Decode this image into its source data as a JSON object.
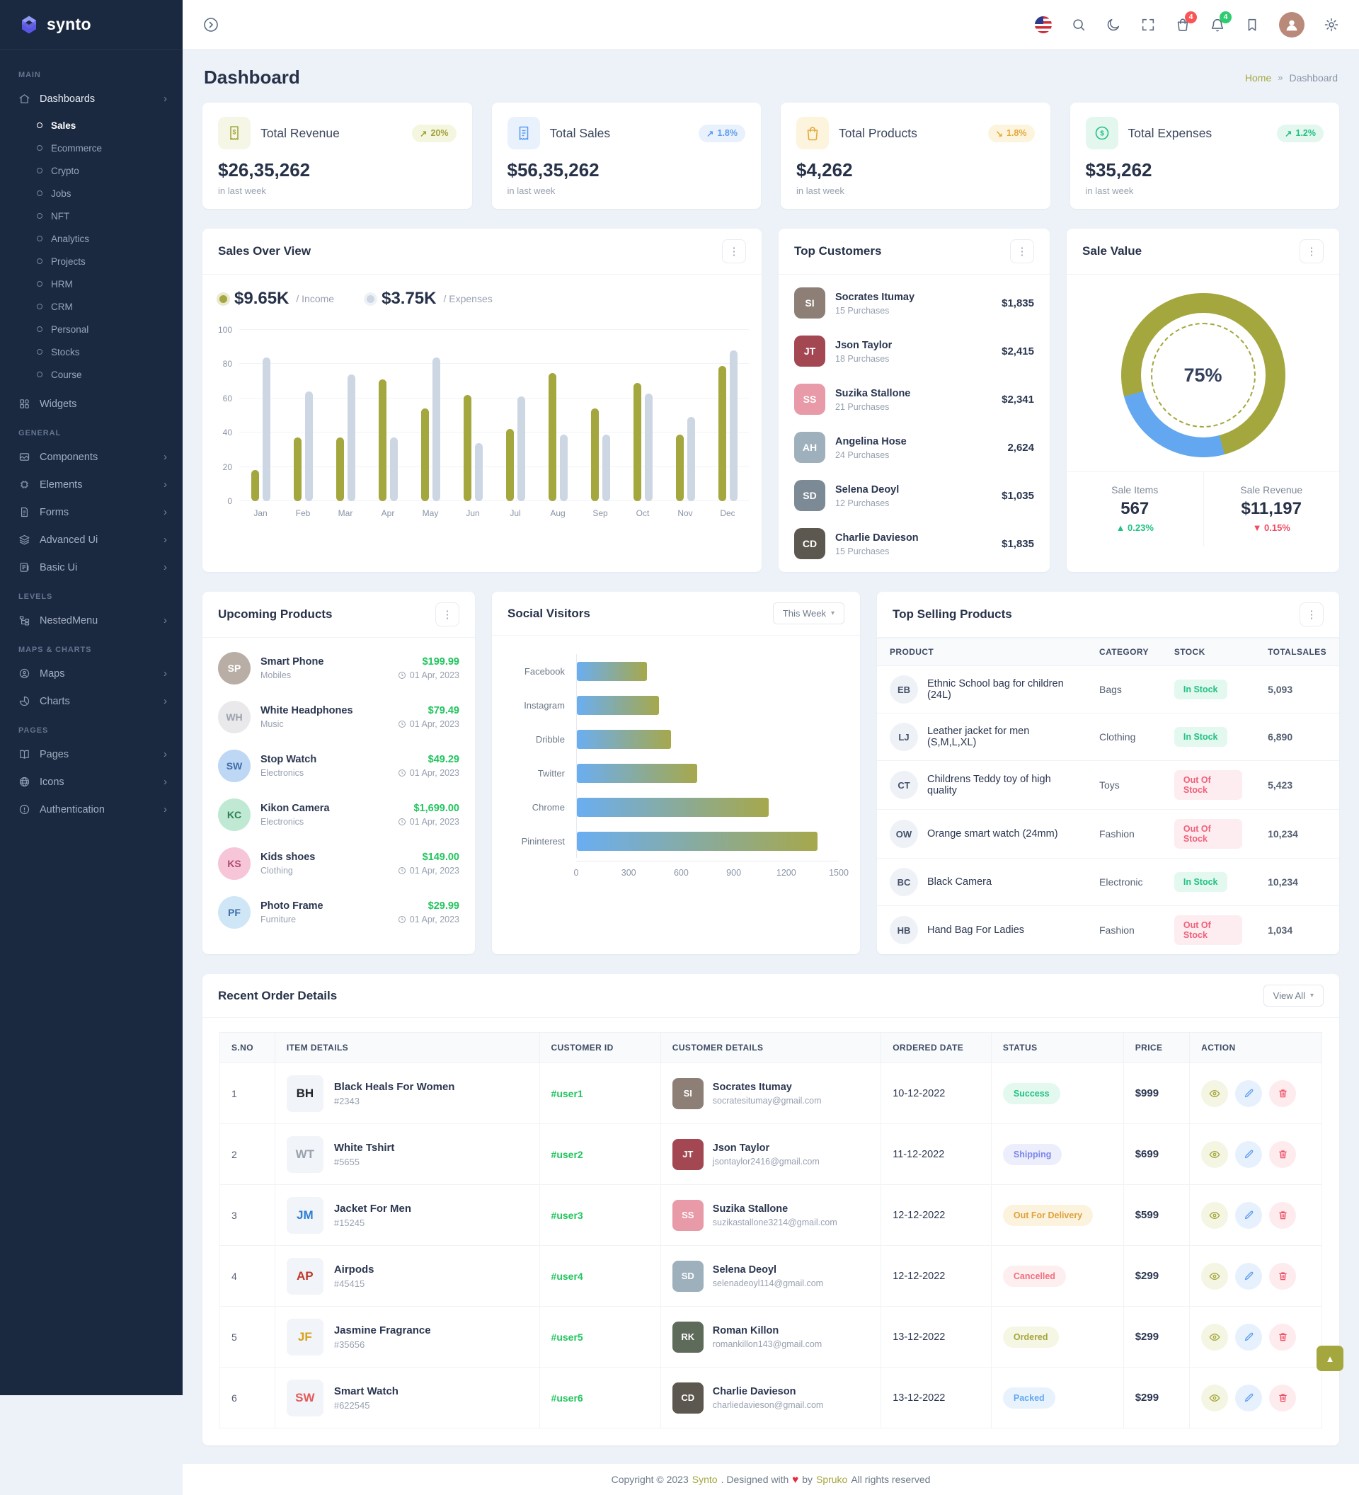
{
  "brand": {
    "name": "synto"
  },
  "page": {
    "title": "Dashboard"
  },
  "breadcrumb": {
    "home": "Home",
    "sep": "»",
    "current": "Dashboard"
  },
  "header": {
    "cart_badge": "4",
    "bell_badge": "4",
    "icons": [
      "sidebar-toggle",
      "us-flag",
      "search",
      "moon",
      "fullscreen",
      "cart",
      "bell",
      "bookmark",
      "avatar",
      "gear"
    ]
  },
  "sidebar": {
    "label_main": "MAIN",
    "label_general": "GENERAL",
    "label_levels": "LEVELS",
    "label_maps": "MAPS & CHARTS",
    "label_pages": "PAGES",
    "dashboards": "Dashboards",
    "children": [
      "Sales",
      "Ecommerce",
      "Crypto",
      "Jobs",
      "NFT",
      "Analytics",
      "Projects",
      "HRM",
      "CRM",
      "Personal",
      "Stocks",
      "Course"
    ],
    "active_child": "Sales",
    "widgets": "Widgets",
    "general_items": [
      "Components",
      "Elements",
      "Forms",
      "Advanced Ui",
      "Basic Ui"
    ],
    "levels_items": [
      "NestedMenu"
    ],
    "maps_items": [
      "Maps",
      "Charts"
    ],
    "pages_items": [
      "Pages",
      "Icons",
      "Authentication"
    ]
  },
  "colors": {
    "olive": "#a4a73e",
    "blue": "#63a7f0",
    "expenses_gray": "#cdd7e4",
    "success": "#23c184",
    "danger": "#ef4b62",
    "warning": "#e3a93c",
    "sidebar_bg": "#1b2940"
  },
  "stats": {
    "cards": [
      {
        "title": "Total Revenue",
        "value": "$26,35,262",
        "sub": "in last week",
        "delta": "20%",
        "arrow": "↗"
      },
      {
        "title": "Total Sales",
        "value": "$56,35,262",
        "sub": "in last week",
        "delta": "1.8%",
        "arrow": "↗"
      },
      {
        "title": "Total Products",
        "value": "$4,262",
        "sub": "in last week",
        "delta": "1.8%",
        "arrow": "↘"
      },
      {
        "title": "Total Expenses",
        "value": "$35,262",
        "sub": "in last week",
        "delta": "1.2%",
        "arrow": "↗"
      }
    ]
  },
  "chart_data": [
    {
      "id": "sales_over_view",
      "type": "bar",
      "title": "Sales Over View",
      "legend_position": "top",
      "grid": true,
      "legend": [
        {
          "label": "/ Income",
          "value_text": "$9.65K",
          "color": "#a4a73e"
        },
        {
          "label": "/ Expenses",
          "value_text": "$3.75K",
          "color": "#cdd7e4"
        }
      ],
      "categories": [
        "Jan",
        "Feb",
        "Mar",
        "Apr",
        "May",
        "Jun",
        "Jul",
        "Aug",
        "Sep",
        "Oct",
        "Nov",
        "Dec"
      ],
      "series": [
        {
          "name": "Income",
          "color": "#a4a73e",
          "values": [
            18,
            37,
            37,
            71,
            54,
            62,
            42,
            75,
            54,
            69,
            39,
            79
          ]
        },
        {
          "name": "Expenses",
          "color": "#cdd7e4",
          "values": [
            84,
            64,
            74,
            37,
            84,
            34,
            61,
            39,
            39,
            63,
            49,
            88
          ]
        }
      ],
      "ylim": [
        0,
        100
      ],
      "yticks": [
        0,
        20,
        40,
        60,
        80,
        100
      ]
    },
    {
      "id": "sale_value",
      "type": "pie",
      "title": "Sale Value",
      "center_label": "75%",
      "start_angle": 255,
      "slices": [
        {
          "label": "Sale",
          "value": 75,
          "color": "#a4a73e"
        },
        {
          "label": "Remaining",
          "value": 25,
          "color": "#63a7f0"
        }
      ],
      "footer": [
        {
          "label": "Sale Items",
          "value": "567",
          "delta": "▲ 0.23%",
          "direction": "up"
        },
        {
          "label": "Sale Revenue",
          "value": "$11,197",
          "delta": "▼ 0.15%",
          "direction": "down"
        }
      ]
    },
    {
      "id": "social_visitors",
      "type": "bar",
      "orientation": "horizontal",
      "title": "Social Visitors",
      "filter_label": "This Week",
      "categories": [
        "Facebook",
        "Instagram",
        "Dribble",
        "Twitter",
        "Chrome",
        "Pininterest"
      ],
      "values": [
        400,
        470,
        540,
        690,
        1100,
        1380
      ],
      "xlim": [
        0,
        1500
      ],
      "xticks": [
        0,
        300,
        600,
        900,
        1200,
        1500
      ]
    }
  ],
  "top_customers": {
    "title": "Top Customers",
    "rows": [
      {
        "initials": "SI",
        "name": "Socrates Itumay",
        "purchases": "15 Purchases",
        "amount": "$1,835"
      },
      {
        "initials": "JT",
        "name": "Json Taylor",
        "purchases": "18 Purchases",
        "amount": "$2,415"
      },
      {
        "initials": "SS",
        "name": "Suzika Stallone",
        "purchases": "21 Purchases",
        "amount": "$2,341"
      },
      {
        "initials": "AH",
        "name": "Angelina Hose",
        "purchases": "24 Purchases",
        "amount": "2,624"
      },
      {
        "initials": "SD",
        "name": "Selena Deoyl",
        "purchases": "12 Purchases",
        "amount": "$1,035"
      },
      {
        "initials": "CD",
        "name": "Charlie Davieson",
        "purchases": "15 Purchases",
        "amount": "$1,835"
      }
    ]
  },
  "upcoming": {
    "title": "Upcoming Products",
    "rows": [
      {
        "initial": "SP",
        "name": "Smart Phone",
        "category": "Mobiles",
        "price": "$199.99",
        "date": "01 Apr, 2023"
      },
      {
        "initial": "WH",
        "name": "White Headphones",
        "category": "Music",
        "price": "$79.49",
        "date": "01 Apr, 2023"
      },
      {
        "initial": "SW",
        "name": "Stop Watch",
        "category": "Electronics",
        "price": "$49.29",
        "date": "01 Apr, 2023"
      },
      {
        "initial": "KC",
        "name": "Kikon Camera",
        "category": "Electronics",
        "price": "$1,699.00",
        "date": "01 Apr, 2023"
      },
      {
        "initial": "KS",
        "name": "Kids shoes",
        "category": "Clothing",
        "price": "$149.00",
        "date": "01 Apr, 2023"
      },
      {
        "initial": "PF",
        "name": "Photo Frame",
        "category": "Furniture",
        "price": "$29.99",
        "date": "01 Apr, 2023"
      }
    ]
  },
  "top_selling": {
    "title": "Top Selling Products",
    "headers": [
      "PRODUCT",
      "CATEGORY",
      "STOCK",
      "TOTALSALES"
    ],
    "rows": [
      {
        "initial": "EB",
        "name": "Ethnic School bag for children (24L)",
        "category": "Bags",
        "stock": "In Stock",
        "sales": "5,093"
      },
      {
        "initial": "LJ",
        "name": "Leather jacket for men (S,M,L,XL)",
        "category": "Clothing",
        "stock": "In Stock",
        "sales": "6,890"
      },
      {
        "initial": "CT",
        "name": "Childrens Teddy toy of high quality",
        "category": "Toys",
        "stock": "Out Of Stock",
        "sales": "5,423"
      },
      {
        "initial": "OW",
        "name": "Orange smart watch (24mm)",
        "category": "Fashion",
        "stock": "Out Of Stock",
        "sales": "10,234"
      },
      {
        "initial": "BC",
        "name": "Black Camera",
        "category": "Electronic",
        "stock": "In Stock",
        "sales": "10,234"
      },
      {
        "initial": "HB",
        "name": "Hand Bag For Ladies",
        "category": "Fashion",
        "stock": "Out Of Stock",
        "sales": "1,034"
      }
    ]
  },
  "orders": {
    "title": "Recent Order Details",
    "view_all": "View All",
    "headers": [
      "S.NO",
      "ITEM DETAILS",
      "CUSTOMER ID",
      "CUSTOMER DETAILS",
      "ORDERED DATE",
      "STATUS",
      "PRICE",
      "ACTION"
    ],
    "rows": [
      {
        "sno": "1",
        "item": "Black Heals For Women",
        "item_id": "#2343",
        "item_initial": "BH",
        "customer_id": "#user1",
        "name": "Socrates Itumay",
        "email": "socratesitumay@gmail.com",
        "avatar": "SI",
        "date": "10-12-2022",
        "status": "Success",
        "price": "$999"
      },
      {
        "sno": "2",
        "item": "White Tshirt",
        "item_id": "#5655",
        "item_initial": "WT",
        "customer_id": "#user2",
        "name": "Json Taylor",
        "email": "jsontaylor2416@gmail.com",
        "avatar": "JT",
        "date": "11-12-2022",
        "status": "Shipping",
        "price": "$699"
      },
      {
        "sno": "3",
        "item": "Jacket For Men",
        "item_id": "#15245",
        "item_initial": "JM",
        "customer_id": "#user3",
        "name": "Suzika Stallone",
        "email": "suzikastallone3214@gmail.com",
        "avatar": "SS",
        "date": "12-12-2022",
        "status": "Out For Delivery",
        "price": "$599"
      },
      {
        "sno": "4",
        "item": "Airpods",
        "item_id": "#45415",
        "item_initial": "AP",
        "customer_id": "#user4",
        "name": "Selena Deoyl",
        "email": "selenadeoyl114@gmail.com",
        "avatar": "SD",
        "date": "12-12-2022",
        "status": "Cancelled",
        "price": "$299"
      },
      {
        "sno": "5",
        "item": "Jasmine Fragrance",
        "item_id": "#35656",
        "item_initial": "JF",
        "customer_id": "#user5",
        "name": "Roman Killon",
        "email": "romankillon143@gmail.com",
        "avatar": "RK",
        "date": "13-12-2022",
        "status": "Ordered",
        "price": "$299"
      },
      {
        "sno": "6",
        "item": "Smart Watch",
        "item_id": "#622545",
        "item_initial": "SW",
        "customer_id": "#user6",
        "name": "Charlie Davieson",
        "email": "charliedavieson@gmail.com",
        "avatar": "CD",
        "date": "13-12-2022",
        "status": "Packed",
        "price": "$299"
      }
    ]
  },
  "footer": {
    "c1": "Copyright © 2023",
    "brand": "Synto",
    "c2": ". Designed with",
    "heart": "♥",
    "c3": "by",
    "brand2": "Spruko",
    "c4": "All rights reserved"
  }
}
